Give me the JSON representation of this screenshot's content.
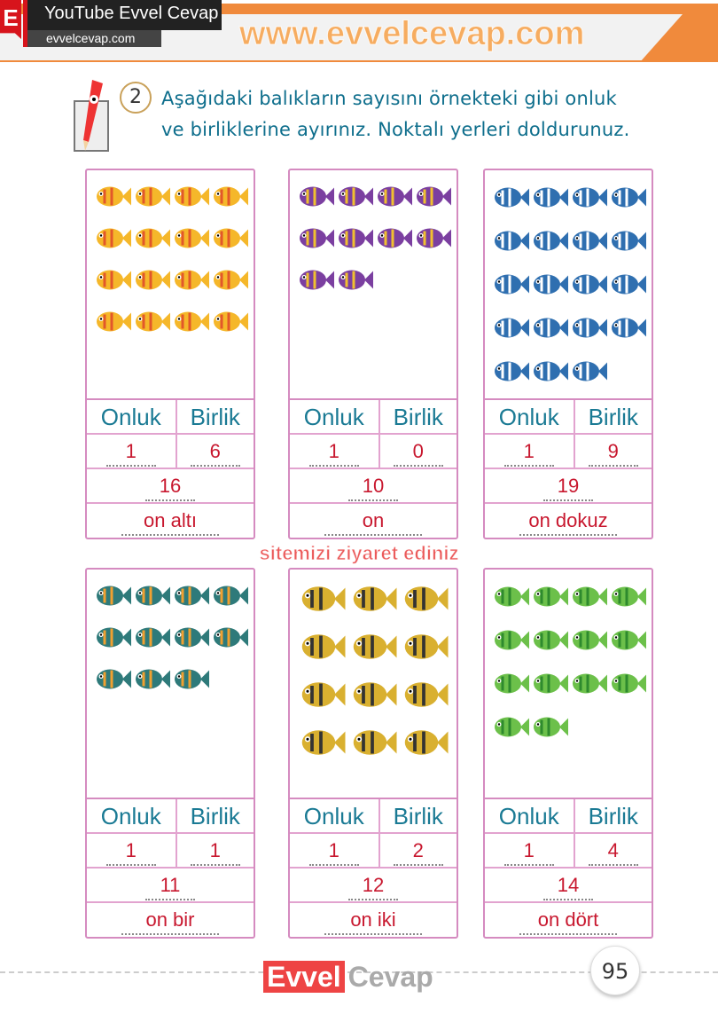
{
  "header": {
    "logo_letter": "E",
    "channel": "YouTube Evvel Cevap",
    "site": "evvelcevap.com"
  },
  "question": {
    "number": "2",
    "line1": "Aşağıdaki balıkların sayısını örnekteki gibi onluk",
    "line2": "ve birliklerine ayırınız. Noktalı yerleri doldurunuz."
  },
  "table_headers": {
    "tens": "Onluk",
    "ones": "Birlik"
  },
  "cards": [
    {
      "fish_count": 16,
      "fish_color": "#f5b72a",
      "fish_accent": "#e2572a",
      "tens": "1",
      "ones": "6",
      "number": "16",
      "words": "on altı"
    },
    {
      "fish_count": 10,
      "fish_color": "#7b3fa0",
      "fish_accent": "#f0c030",
      "tens": "1",
      "ones": "0",
      "number": "10",
      "words": "on"
    },
    {
      "fish_count": 19,
      "fish_color": "#2f6fb0",
      "fish_accent": "#ffffff",
      "tens": "1",
      "ones": "9",
      "number": "19",
      "words": "on dokuz"
    },
    {
      "fish_count": 11,
      "fish_color": "#2e7a7a",
      "fish_accent": "#f0a030",
      "tens": "1",
      "ones": "1",
      "number": "11",
      "words": "on bir"
    },
    {
      "fish_count": 12,
      "fish_color": "#d9b030",
      "fish_accent": "#333333",
      "tens": "1",
      "ones": "2",
      "number": "12",
      "words": "on iki"
    },
    {
      "fish_count": 14,
      "fish_color": "#6cc04a",
      "fish_accent": "#2e8a2e",
      "tens": "1",
      "ones": "4",
      "number": "14",
      "words": "on dört"
    }
  ],
  "watermark": {
    "main": "www.evvelcevap.com",
    "sub": "sitemizi ziyaret ediniz"
  },
  "footer": {
    "logo_a": "Evvel",
    "logo_b": "Cevap",
    "page": "95"
  }
}
